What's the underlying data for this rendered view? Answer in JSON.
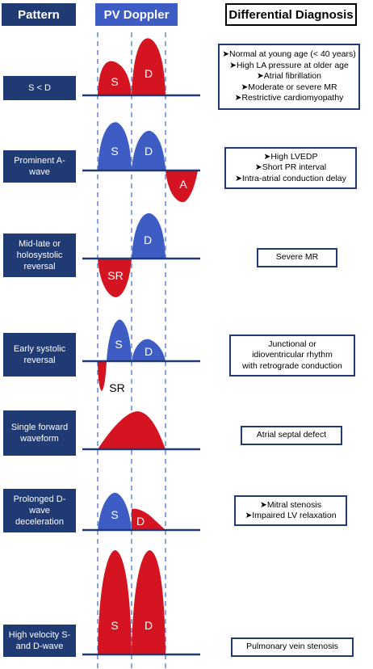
{
  "headers": {
    "pattern": "Pattern",
    "doppler": "PV Doppler",
    "diagnosis": "Differential Diagnosis"
  },
  "colors": {
    "navy": "#203a73",
    "blue": "#3d5cc4",
    "red": "#d41420",
    "dashed": "#6a8fd6"
  },
  "rows": [
    {
      "pattern": "S < D",
      "waves": [
        "S",
        "D"
      ],
      "diagnosis": [
        "➤Normal at young age (< 40 years)",
        "➤High LA pressure at older age",
        "➤Atrial fibrillation",
        "➤Moderate or severe MR",
        "➤Restrictive cardiomyopathy"
      ]
    },
    {
      "pattern": "Prominent A-wave",
      "waves": [
        "S",
        "D",
        "A"
      ],
      "diagnosis": [
        "➤High LVEDP",
        "➤Short PR interval",
        "➤Intra-atrial conduction delay"
      ]
    },
    {
      "pattern": "Mid-late or holosystolic reversal",
      "waves": [
        "D",
        "SR"
      ],
      "diagnosis": [
        "Severe MR"
      ]
    },
    {
      "pattern": "Early systolic reversal",
      "waves": [
        "S",
        "D",
        "SR"
      ],
      "diagnosis": [
        "Junctional or",
        "idioventricular rhythm",
        "with retrograde conduction"
      ]
    },
    {
      "pattern": "Single forward waveform",
      "waves": [],
      "diagnosis": [
        "Atrial septal defect"
      ]
    },
    {
      "pattern": "Prolonged D-wave deceleration",
      "waves": [
        "S",
        "D"
      ],
      "diagnosis": [
        "➤Mitral stenosis",
        "➤Impaired LV relaxation"
      ]
    },
    {
      "pattern": "High velocity S- and D-wave",
      "waves": [
        "S",
        "D"
      ],
      "diagnosis": [
        "Pulmonary vein stenosis"
      ]
    }
  ]
}
